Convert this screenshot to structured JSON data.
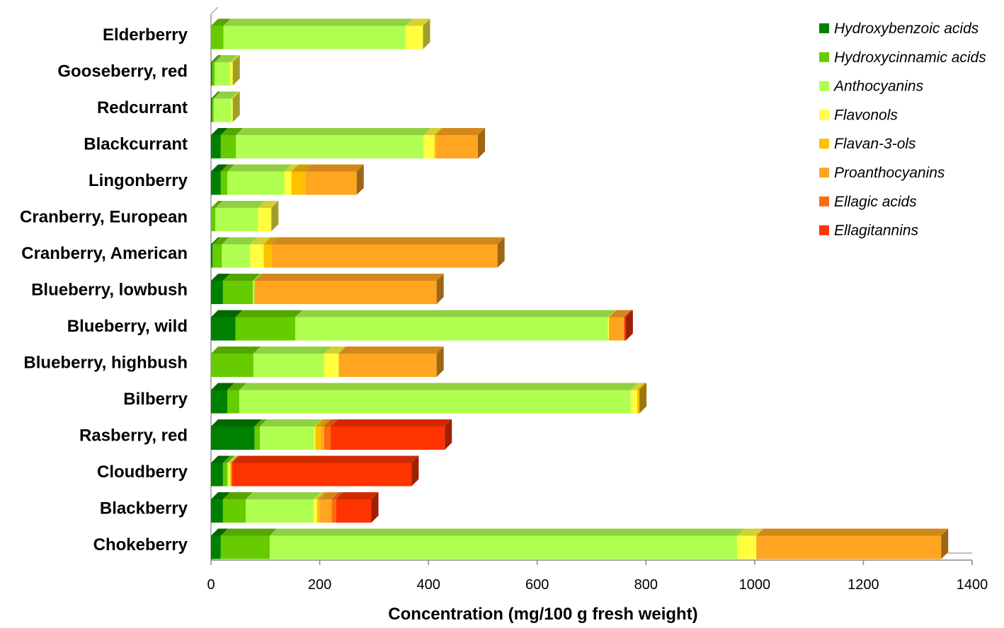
{
  "chart_data": {
    "type": "bar",
    "orientation": "horizontal",
    "stacked": true,
    "three_d": true,
    "title": "",
    "xlabel": "Concentration (mg/100 g fresh weight)",
    "ylabel": "",
    "xlim": [
      0,
      1400
    ],
    "xticks": [
      0,
      200,
      400,
      600,
      800,
      1000,
      1200,
      1400
    ],
    "grid": false,
    "legend_position": "right",
    "categories": [
      "Elderberry",
      "Gooseberry, red",
      "Redcurrant",
      "Blackcurrant",
      "Lingonberry",
      "Cranberry, European",
      "Cranberry, American",
      "Blueberry, lowbush",
      "Blueberry, wild",
      "Blueberry, highbush",
      "Bilberry",
      "Rasberry, red",
      "Cloudberry",
      "Blackberry",
      "Chokeberry"
    ],
    "series": [
      {
        "name": "Hydroxybenzoic acids",
        "color": "#008000",
        "values": [
          0,
          2,
          2,
          18,
          18,
          0,
          3,
          22,
          45,
          0,
          30,
          80,
          22,
          22,
          18
        ]
      },
      {
        "name": "Hydroxycinnamic acids",
        "color": "#66CC00",
        "values": [
          23,
          5,
          3,
          28,
          12,
          8,
          17,
          55,
          110,
          78,
          22,
          10,
          8,
          42,
          90
        ]
      },
      {
        "name": "Anthocyanins",
        "color": "#B0FF50",
        "values": [
          335,
          28,
          32,
          345,
          105,
          78,
          52,
          3,
          575,
          130,
          720,
          100,
          3,
          125,
          860
        ]
      },
      {
        "name": "Flavonols",
        "color": "#FFFF40",
        "values": [
          32,
          5,
          3,
          20,
          13,
          25,
          25,
          0,
          2,
          27,
          12,
          2,
          2,
          6,
          35
        ]
      },
      {
        "name": "Flavan-3-ols",
        "color": "#FFC000",
        "values": [
          0,
          0,
          0,
          3,
          25,
          0,
          15,
          0,
          0,
          0,
          4,
          10,
          2,
          5,
          0
        ]
      },
      {
        "name": "Proanthocyanins",
        "color": "#FFA520",
        "values": [
          0,
          0,
          0,
          77,
          95,
          0,
          415,
          335,
          28,
          180,
          0,
          6,
          0,
          22,
          340
        ]
      },
      {
        "name": "Ellagic acids",
        "color": "#FF6A10",
        "values": [
          0,
          0,
          0,
          0,
          0,
          0,
          0,
          0,
          0,
          0,
          0,
          12,
          2,
          8,
          0
        ]
      },
      {
        "name": "Ellagitannins",
        "color": "#FF3300",
        "values": [
          0,
          0,
          0,
          0,
          0,
          0,
          0,
          0,
          3,
          0,
          0,
          210,
          330,
          65,
          0
        ]
      }
    ]
  }
}
